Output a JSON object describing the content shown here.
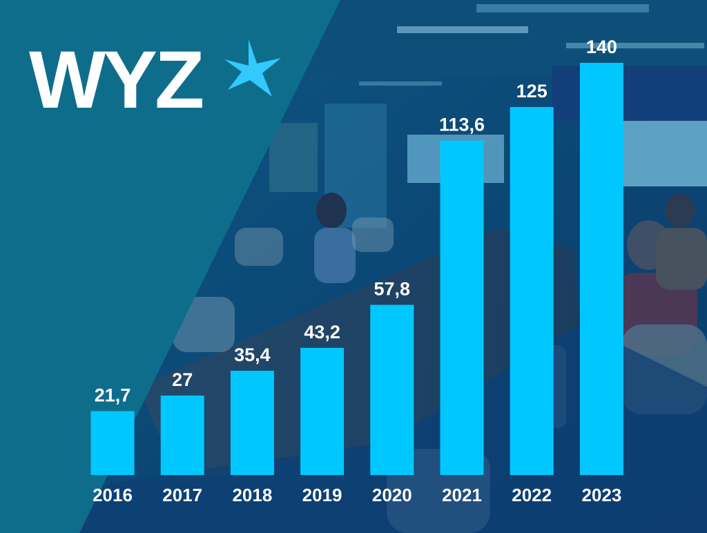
{
  "brand": {
    "logo_text": "WYZ",
    "logo_icon": "four-point-star-icon",
    "colors": {
      "teal_panel": "#0f6d8c",
      "bar": "#00c8ff",
      "text": "#ffffff",
      "logo_star": "#33c9ff"
    }
  },
  "chart_data": {
    "type": "bar",
    "categories": [
      "2016",
      "2017",
      "2018",
      "2019",
      "2020",
      "2021",
      "2022",
      "2023"
    ],
    "values": [
      21.7,
      27,
      35.4,
      43.2,
      57.8,
      113.6,
      125,
      140
    ],
    "value_labels": [
      "21,7",
      "27",
      "35,4",
      "43,2",
      "57,8",
      "113,6",
      "125",
      "140"
    ],
    "title": "",
    "xlabel": "",
    "ylabel": "",
    "ylim": [
      0,
      140
    ],
    "grid": false,
    "legend": "none"
  }
}
